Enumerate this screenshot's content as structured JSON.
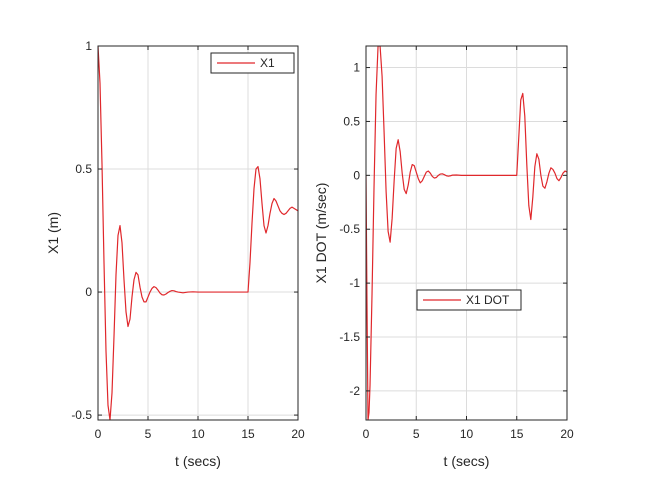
{
  "colors": {
    "series": "#e0282c",
    "axis": "#262626",
    "grid": "#dcdcdc",
    "background": "#ffffff"
  },
  "chart_data": [
    {
      "type": "line",
      "title": "",
      "xlabel": "t (secs)",
      "ylabel": "X1 (m)",
      "xlim": [
        0,
        20
      ],
      "ylim": [
        -0.52,
        1.0
      ],
      "xticks": [
        0,
        5,
        10,
        15,
        20
      ],
      "xtick_labels": [
        "0",
        "5",
        "10",
        "15",
        "20"
      ],
      "yticks": [
        -0.5,
        0,
        0.5,
        1
      ],
      "ytick_labels": [
        "-0.5",
        "0",
        "0.5",
        "1"
      ],
      "grid": true,
      "legend": {
        "position": "top-right",
        "entries": [
          "X1"
        ]
      },
      "series": [
        {
          "name": "X1",
          "color": "#e0282c",
          "x": [
            0,
            0.2,
            0.4,
            0.6,
            0.8,
            1.0,
            1.2,
            1.4,
            1.6,
            1.8,
            2.0,
            2.2,
            2.4,
            2.6,
            2.8,
            3.0,
            3.2,
            3.4,
            3.6,
            3.8,
            4.0,
            4.2,
            4.4,
            4.6,
            4.8,
            5.0,
            5.2,
            5.4,
            5.6,
            5.8,
            6.0,
            6.2,
            6.4,
            6.6,
            6.8,
            7.0,
            7.2,
            7.4,
            7.6,
            7.8,
            8.0,
            8.5,
            9.0,
            9.5,
            10.0,
            11.0,
            12.0,
            13.0,
            14.0,
            15.0,
            15.2,
            15.4,
            15.6,
            15.8,
            16.0,
            16.2,
            16.4,
            16.6,
            16.8,
            17.0,
            17.2,
            17.4,
            17.6,
            17.8,
            18.0,
            18.2,
            18.4,
            18.6,
            18.8,
            19.0,
            19.2,
            19.4,
            19.6,
            19.8,
            20.0
          ],
          "y": [
            1.0,
            0.85,
            0.52,
            0.12,
            -0.24,
            -0.46,
            -0.52,
            -0.41,
            -0.18,
            0.07,
            0.23,
            0.27,
            0.2,
            0.05,
            -0.08,
            -0.14,
            -0.11,
            -0.02,
            0.05,
            0.08,
            0.07,
            0.02,
            -0.02,
            -0.04,
            -0.04,
            -0.02,
            0.0,
            0.015,
            0.022,
            0.018,
            0.008,
            -0.004,
            -0.011,
            -0.012,
            -0.008,
            -0.002,
            0.003,
            0.006,
            0.005,
            0.002,
            0.0,
            -0.003,
            0.0,
            0.001,
            0.0,
            0.0,
            0.0,
            0.0,
            0.0,
            0.0,
            0.12,
            0.28,
            0.42,
            0.5,
            0.51,
            0.46,
            0.36,
            0.27,
            0.24,
            0.27,
            0.32,
            0.36,
            0.38,
            0.37,
            0.35,
            0.33,
            0.32,
            0.315,
            0.32,
            0.33,
            0.34,
            0.345,
            0.34,
            0.335,
            0.33
          ]
        }
      ]
    },
    {
      "type": "line",
      "title": "",
      "xlabel": "t (secs)",
      "ylabel": "X1 DOT (m/sec)",
      "xlim": [
        0,
        20
      ],
      "ylim": [
        -2.27,
        1.2
      ],
      "xticks": [
        0,
        5,
        10,
        15,
        20
      ],
      "xtick_labels": [
        "0",
        "5",
        "10",
        "15",
        "20"
      ],
      "yticks": [
        -2,
        -1.5,
        -1,
        -0.5,
        0,
        0.5,
        1
      ],
      "ytick_labels": [
        "-2",
        "-1.5",
        "-1",
        "-0.5",
        "0",
        "0.5",
        "1"
      ],
      "grid": true,
      "legend": {
        "position": "middle-center",
        "entries": [
          "X1 DOT"
        ]
      },
      "series": [
        {
          "name": "X1 DOT",
          "color": "#e0282c",
          "x": [
            0,
            0.1,
            0.2,
            0.3,
            0.4,
            0.6,
            0.8,
            1.0,
            1.2,
            1.4,
            1.6,
            1.8,
            2.0,
            2.2,
            2.4,
            2.6,
            2.8,
            3.0,
            3.2,
            3.4,
            3.6,
            3.8,
            4.0,
            4.2,
            4.4,
            4.6,
            4.8,
            5.0,
            5.2,
            5.4,
            5.6,
            5.8,
            6.0,
            6.2,
            6.4,
            6.6,
            6.8,
            7.0,
            7.2,
            7.4,
            7.6,
            7.8,
            8.0,
            8.2,
            8.4,
            8.6,
            9.0,
            9.5,
            10.0,
            11.0,
            12.0,
            13.0,
            14.0,
            15.0,
            15.2,
            15.4,
            15.6,
            15.8,
            16.0,
            16.2,
            16.4,
            16.6,
            16.8,
            17.0,
            17.2,
            17.4,
            17.6,
            17.8,
            18.0,
            18.2,
            18.4,
            18.6,
            18.8,
            19.0,
            19.2,
            19.4,
            19.6,
            19.8,
            20.0
          ],
          "y": [
            0,
            -1.2,
            -2.27,
            -2.2,
            -1.95,
            -1.1,
            -0.1,
            0.75,
            1.2,
            1.2,
            0.92,
            0.4,
            -0.15,
            -0.52,
            -0.62,
            -0.4,
            -0.05,
            0.25,
            0.33,
            0.22,
            0.02,
            -0.13,
            -0.17,
            -0.09,
            0.03,
            0.1,
            0.09,
            0.03,
            -0.03,
            -0.07,
            -0.05,
            -0.01,
            0.03,
            0.04,
            0.02,
            -0.01,
            -0.025,
            -0.02,
            0.0,
            0.012,
            0.014,
            0.006,
            -0.004,
            -0.008,
            -0.004,
            0.002,
            0.003,
            0.0,
            0.0,
            0.0,
            0.0,
            0.0,
            0.0,
            0.0,
            0.35,
            0.7,
            0.76,
            0.55,
            0.1,
            -0.28,
            -0.41,
            -0.2,
            0.08,
            0.2,
            0.15,
            0.0,
            -0.1,
            -0.12,
            -0.06,
            0.02,
            0.07,
            0.055,
            0.02,
            -0.03,
            -0.05,
            -0.02,
            0.02,
            0.04,
            0.03
          ]
        }
      ]
    }
  ]
}
